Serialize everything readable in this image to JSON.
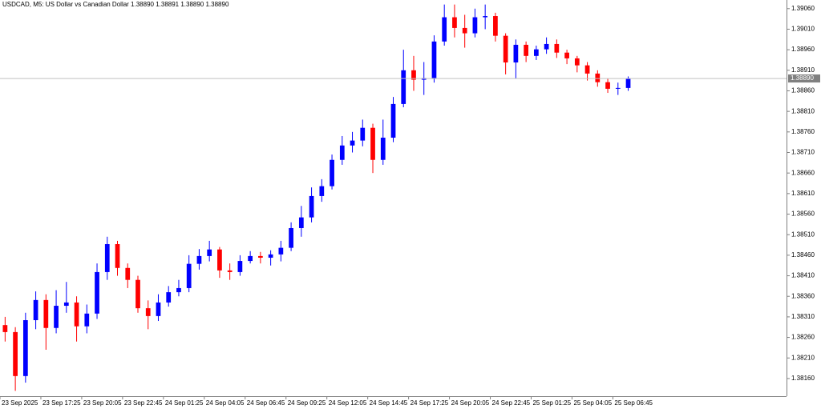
{
  "chart_data": {
    "type": "candlestick",
    "title": "USDCAD, M5:  US Dollar vs Canadian Dollar  1.38890 1.38891 1.38890 1.38890",
    "up_color": "#0000ff",
    "down_color": "#ff0000",
    "axis_color": "#808080",
    "open": [
      1.3829,
      1.38273,
      1.38166,
      1.38302,
      1.38351,
      1.38283,
      1.38337,
      1.38345,
      1.38287,
      1.38318,
      1.38419,
      1.38487,
      1.38429,
      1.384,
      1.38331,
      1.38312,
      1.38345,
      1.3837,
      1.3838,
      1.38439,
      1.38458,
      1.38474,
      1.38423,
      1.38419,
      1.38446,
      1.38458,
      1.38454,
      1.38462,
      1.38478,
      1.38526,
      1.38552,
      1.38604,
      1.38628,
      1.38692,
      1.38727,
      1.38739,
      1.3877,
      1.38692,
      1.38746,
      1.38828,
      1.3891,
      1.38887,
      1.38891,
      1.3898,
      1.39039,
      1.39013,
      1.39,
      1.39039,
      1.39042,
      1.38994,
      1.38929,
      1.38972,
      1.38945,
      1.38961,
      1.38974,
      1.38953,
      1.38939,
      1.38922,
      1.38902,
      1.38881,
      1.38865,
      1.38867
    ],
    "high": [
      1.3831,
      1.38285,
      1.3832,
      1.38372,
      1.38365,
      1.38375,
      1.38395,
      1.3836,
      1.3834,
      1.3844,
      1.38505,
      1.38495,
      1.3844,
      1.3841,
      1.3835,
      1.38365,
      1.38385,
      1.384,
      1.3846,
      1.38475,
      1.38495,
      1.3848,
      1.3844,
      1.3846,
      1.3847,
      1.38468,
      1.38472,
      1.38495,
      1.3854,
      1.3858,
      1.38625,
      1.38645,
      1.38705,
      1.3875,
      1.3876,
      1.3879,
      1.3878,
      1.3879,
      1.38845,
      1.3896,
      1.38945,
      1.3893,
      1.38995,
      1.3907,
      1.3907,
      1.39045,
      1.3906,
      1.3907,
      1.3905,
      1.39,
      1.38985,
      1.3898,
      1.3897,
      1.3899,
      1.38985,
      1.3896,
      1.38945,
      1.3893,
      1.3891,
      1.3889,
      1.3888,
      1.38895
    ],
    "low": [
      1.3825,
      1.3813,
      1.3815,
      1.3828,
      1.3823,
      1.3827,
      1.3832,
      1.3825,
      1.3827,
      1.38305,
      1.384,
      1.3841,
      1.3838,
      1.3832,
      1.3828,
      1.383,
      1.38335,
      1.3836,
      1.3837,
      1.38425,
      1.38445,
      1.38405,
      1.384,
      1.3841,
      1.3844,
      1.3844,
      1.38435,
      1.38445,
      1.3847,
      1.38505,
      1.3854,
      1.3859,
      1.3862,
      1.3868,
      1.3871,
      1.38725,
      1.3866,
      1.3868,
      1.38735,
      1.3882,
      1.3886,
      1.3885,
      1.3888,
      1.3897,
      1.3899,
      1.38965,
      1.3899,
      1.3901,
      1.3898,
      1.389,
      1.3889,
      1.3893,
      1.38935,
      1.3895,
      1.3894,
      1.38925,
      1.38905,
      1.38885,
      1.3887,
      1.38855,
      1.3885,
      1.3886
    ],
    "close": [
      1.38273,
      1.38166,
      1.38302,
      1.38351,
      1.38283,
      1.38337,
      1.38345,
      1.38287,
      1.38318,
      1.38419,
      1.38487,
      1.38429,
      1.384,
      1.38331,
      1.38312,
      1.38345,
      1.3837,
      1.3838,
      1.38439,
      1.38458,
      1.38474,
      1.38423,
      1.38419,
      1.38446,
      1.38458,
      1.38454,
      1.38462,
      1.38478,
      1.38526,
      1.38552,
      1.38604,
      1.38628,
      1.38692,
      1.38727,
      1.38739,
      1.3877,
      1.38692,
      1.38746,
      1.38828,
      1.3891,
      1.38887,
      1.38891,
      1.3898,
      1.39039,
      1.39013,
      1.39,
      1.39039,
      1.39042,
      1.38994,
      1.38929,
      1.38972,
      1.38945,
      1.38961,
      1.38974,
      1.38953,
      1.38939,
      1.38922,
      1.38902,
      1.38881,
      1.38865,
      1.38867,
      1.3889
    ],
    "xlim": [
      0,
      77
    ],
    "xticks": [
      {
        "value": 0,
        "label": "23 Sep 2025"
      },
      {
        "value": 4,
        "label": "23 Sep 17:25"
      },
      {
        "value": 8,
        "label": "23 Sep 20:05"
      },
      {
        "value": 12,
        "label": "23 Sep 22:45"
      },
      {
        "value": 16,
        "label": "24 Sep 01:25"
      },
      {
        "value": 20,
        "label": "24 Sep 04:05"
      },
      {
        "value": 24,
        "label": "24 Sep 06:45"
      },
      {
        "value": 28,
        "label": "24 Sep 09:25"
      },
      {
        "value": 32,
        "label": "24 Sep 12:05"
      },
      {
        "value": 36,
        "label": "24 Sep 14:45"
      },
      {
        "value": 40,
        "label": "24 Sep 17:25"
      },
      {
        "value": 44,
        "label": "24 Sep 20:05"
      },
      {
        "value": 48,
        "label": "24 Sep 22:45"
      },
      {
        "value": 52,
        "label": "25 Sep 01:25"
      },
      {
        "value": 56,
        "label": "25 Sep 04:05"
      },
      {
        "value": 60,
        "label": "25 Sep 06:45"
      }
    ],
    "ylim": [
      1.38117,
      1.39081
    ],
    "yticks": [
      {
        "value": 1.3906,
        "label": "1.39060"
      },
      {
        "value": 1.3901,
        "label": "1.39010"
      },
      {
        "value": 1.3896,
        "label": "1.38960"
      },
      {
        "value": 1.3891,
        "label": "1.38910"
      },
      {
        "value": 1.3886,
        "label": "1.38860"
      },
      {
        "value": 1.3881,
        "label": "1.38810"
      },
      {
        "value": 1.3876,
        "label": "1.38760"
      },
      {
        "value": 1.3871,
        "label": "1.38710"
      },
      {
        "value": 1.3866,
        "label": "1.38660"
      },
      {
        "value": 1.3861,
        "label": "1.38610"
      },
      {
        "value": 1.3856,
        "label": "1.38560"
      },
      {
        "value": 1.3851,
        "label": "1.38510"
      },
      {
        "value": 1.3846,
        "label": "1.38460"
      },
      {
        "value": 1.3841,
        "label": "1.38410"
      },
      {
        "value": 1.3836,
        "label": "1.38360"
      },
      {
        "value": 1.3831,
        "label": "1.38310"
      },
      {
        "value": 1.3826,
        "label": "1.38260"
      },
      {
        "value": 1.3821,
        "label": "1.38210"
      },
      {
        "value": 1.3816,
        "label": "1.38160"
      }
    ],
    "current_price": {
      "value": 1.3889,
      "label": "1.38890"
    }
  }
}
